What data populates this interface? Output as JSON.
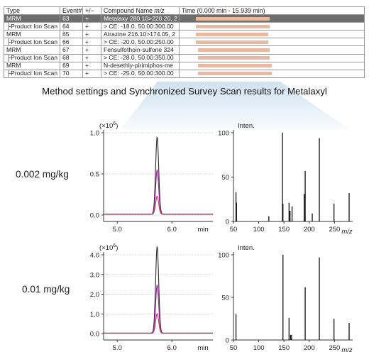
{
  "table": {
    "headers": {
      "type": "Type",
      "event": "Event#",
      "sign": "+/−",
      "compound_prefix": "Compound Name ",
      "compound_unit": "m/z",
      "time": "Time (0.000 min - 15.939 min)"
    },
    "rows": [
      {
        "type": "MRM",
        "event": "63",
        "sign": "+",
        "compound": "Metalaxy 280.10>220.20, 2",
        "bar_start": 0.09,
        "bar_end": 0.49,
        "selected": true
      },
      {
        "type": "├Product Ion Scan",
        "event": "64",
        "sign": "+",
        "compound": "> CE: -18.0, 50.00:300.00",
        "bar_start": 0.09,
        "bar_end": 0.49,
        "selected": false
      },
      {
        "type": "MRM",
        "event": "65",
        "sign": "+",
        "compound": "Atrazine 216.10>174.05, 2",
        "bar_start": 0.09,
        "bar_end": 0.48,
        "selected": false
      },
      {
        "type": "├Product Ion Scan",
        "event": "66",
        "sign": "+",
        "compound": "> CE: -20.0, 50.00:250.00",
        "bar_start": 0.09,
        "bar_end": 0.48,
        "selected": false
      },
      {
        "type": "MRM",
        "event": "67",
        "sign": "+",
        "compound": "Fensulfothoin-sulfone 324",
        "bar_start": 0.1,
        "bar_end": 0.49,
        "selected": false
      },
      {
        "type": "├Product Ion Scan",
        "event": "68",
        "sign": "+",
        "compound": "> CE: -28.0, 50.00:350.00",
        "bar_start": 0.1,
        "bar_end": 0.49,
        "selected": false
      },
      {
        "type": "MRM",
        "event": "69",
        "sign": "+",
        "compound": "N-desethly-pirimiphos-me",
        "bar_start": 0.1,
        "bar_end": 0.5,
        "selected": false
      },
      {
        "type": "├Product Ion Scan",
        "event": "70",
        "sign": "+",
        "compound": "> CE: -25.0, 50.00:300.00",
        "bar_start": 0.1,
        "bar_end": 0.5,
        "selected": false
      }
    ],
    "bar_color": "#e9b9a2",
    "selected_color": "#6e6e6e"
  },
  "section_title": "Method settings and Synchronized Survey Scan results for Metalaxyl",
  "callout_color": "#cfe3f1",
  "chart_data": [
    {
      "id": "chrom-0002",
      "type": "line",
      "sample_label": "0.002 mg/kg",
      "scale_label": "(×10",
      "scale_exp": "6",
      "scale_close": ")",
      "xlabel": "min",
      "xlim": [
        4.75,
        6.75
      ],
      "ylim": [
        0,
        1.0
      ],
      "x_ticks": [
        5.0,
        6.0
      ],
      "x_tick_labels": [
        "5.0",
        "6.0"
      ],
      "y_ticks": [
        0.0,
        0.5,
        1.0
      ],
      "y_tick_labels": [
        "0.0",
        "0.5",
        "1.0"
      ],
      "peak_center": 5.73,
      "baseline": 0.01,
      "series": [
        {
          "color": "#2b2b2b",
          "peak": 0.94,
          "width": 0.028
        },
        {
          "color": "#9d1f9c",
          "peak": 0.54,
          "width": 0.028
        },
        {
          "color": "#c0395a",
          "peak": 0.22,
          "width": 0.028
        }
      ]
    },
    {
      "id": "spec-0002",
      "type": "bar",
      "ylabel": "Inten.",
      "xlabel_italic": "m/z",
      "xlim": [
        50,
        286
      ],
      "ylim": [
        0,
        100
      ],
      "x_ticks": [
        50,
        100,
        150,
        200,
        250
      ],
      "x_tick_labels": [
        "50",
        "100",
        "150",
        "200",
        "250"
      ],
      "y_ticks": [
        0,
        50,
        100
      ],
      "y_tick_labels": [
        "0",
        "50",
        "100"
      ],
      "peaks": [
        {
          "x": 55,
          "y": 33
        },
        {
          "x": 56,
          "y": 21
        },
        {
          "x": 120,
          "y": 6
        },
        {
          "x": 147,
          "y": 100
        },
        {
          "x": 148,
          "y": 20
        },
        {
          "x": 160,
          "y": 21
        },
        {
          "x": 162,
          "y": 12
        },
        {
          "x": 166,
          "y": 17
        },
        {
          "x": 190,
          "y": 31
        },
        {
          "x": 192,
          "y": 57
        },
        {
          "x": 206,
          "y": 9
        },
        {
          "x": 220,
          "y": 94
        },
        {
          "x": 249,
          "y": 20
        },
        {
          "x": 279,
          "y": 32
        }
      ]
    },
    {
      "id": "chrom-001",
      "type": "line",
      "sample_label": "0.01 mg/kg",
      "scale_label": "(×10",
      "scale_exp": "6",
      "scale_close": ")",
      "xlabel": "min",
      "xlim": [
        4.75,
        6.75
      ],
      "ylim": [
        0,
        4.5
      ],
      "x_ticks": [
        5.0,
        6.0
      ],
      "x_tick_labels": [
        "5.0",
        "6.0"
      ],
      "y_ticks": [
        0.0,
        1.0,
        2.0,
        3.0,
        4.0
      ],
      "y_tick_labels": [
        "0.0",
        "1.0",
        "2.0",
        "3.0",
        "4.0"
      ],
      "peak_center": 5.73,
      "baseline": 0.02,
      "series": [
        {
          "color": "#2b2b2b",
          "peak": 4.4,
          "width": 0.028
        },
        {
          "color": "#9d1f9c",
          "peak": 2.45,
          "width": 0.028
        },
        {
          "color": "#c0395a",
          "peak": 1.0,
          "width": 0.028
        }
      ]
    },
    {
      "id": "spec-001",
      "type": "bar",
      "ylabel": "Inten.",
      "xlabel_italic": "m/z",
      "xlim": [
        50,
        286
      ],
      "ylim": [
        0,
        100
      ],
      "x_ticks": [
        50,
        100,
        150,
        200,
        250
      ],
      "x_tick_labels": [
        "50",
        "100",
        "150",
        "200",
        "250"
      ],
      "y_ticks": [
        0,
        50,
        100
      ],
      "y_tick_labels": [
        "0",
        "50",
        "100"
      ],
      "peaks": [
        {
          "x": 55,
          "y": 30
        },
        {
          "x": 148,
          "y": 100
        },
        {
          "x": 160,
          "y": 26
        },
        {
          "x": 163,
          "y": 6
        },
        {
          "x": 165,
          "y": 6
        },
        {
          "x": 192,
          "y": 62
        },
        {
          "x": 220,
          "y": 97
        },
        {
          "x": 249,
          "y": 25
        },
        {
          "x": 279,
          "y": 20
        }
      ]
    }
  ]
}
